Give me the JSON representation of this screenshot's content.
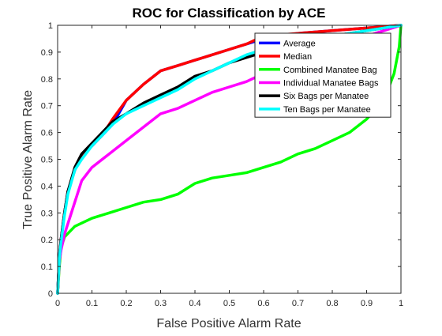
{
  "chart_data": {
    "type": "line",
    "title": "ROC for Classification by ACE",
    "xlabel": "False Positive Alarm Rate",
    "ylabel": "True Positive Alarm Rate",
    "xlim": [
      0,
      1
    ],
    "ylim": [
      0,
      1
    ],
    "xticks": [
      "0",
      "0.1",
      "0.2",
      "0.3",
      "0.4",
      "0.5",
      "0.6",
      "0.7",
      "0.8",
      "0.9",
      "1"
    ],
    "yticks": [
      "0",
      "0.1",
      "0.2",
      "0.3",
      "0.4",
      "0.5",
      "0.6",
      "0.7",
      "0.8",
      "0.9",
      "1"
    ],
    "grid": false,
    "legend_position": "top-right",
    "series": [
      {
        "name": "Average",
        "color": "#0000ff",
        "points": [
          [
            0,
            0
          ],
          [
            0.005,
            0.14
          ],
          [
            0.01,
            0.2
          ],
          [
            0.02,
            0.3
          ],
          [
            0.03,
            0.38
          ],
          [
            0.05,
            0.46
          ],
          [
            0.07,
            0.51
          ],
          [
            0.1,
            0.55
          ],
          [
            0.13,
            0.59
          ],
          [
            0.16,
            0.63
          ],
          [
            0.2,
            0.72
          ],
          [
            0.25,
            0.78
          ],
          [
            0.3,
            0.83
          ],
          [
            0.35,
            0.85
          ],
          [
            0.4,
            0.87
          ],
          [
            0.45,
            0.89
          ],
          [
            0.5,
            0.91
          ],
          [
            0.55,
            0.93
          ],
          [
            0.6,
            0.95
          ],
          [
            0.7,
            0.97
          ],
          [
            0.8,
            0.98
          ],
          [
            0.9,
            0.99
          ],
          [
            1,
            1
          ]
        ]
      },
      {
        "name": "Median",
        "color": "#ff0000",
        "points": [
          [
            0,
            0
          ],
          [
            0.005,
            0.13
          ],
          [
            0.01,
            0.2
          ],
          [
            0.02,
            0.3
          ],
          [
            0.03,
            0.38
          ],
          [
            0.05,
            0.46
          ],
          [
            0.07,
            0.51
          ],
          [
            0.1,
            0.55
          ],
          [
            0.13,
            0.59
          ],
          [
            0.16,
            0.65
          ],
          [
            0.2,
            0.72
          ],
          [
            0.25,
            0.78
          ],
          [
            0.3,
            0.83
          ],
          [
            0.35,
            0.85
          ],
          [
            0.4,
            0.87
          ],
          [
            0.45,
            0.89
          ],
          [
            0.5,
            0.91
          ],
          [
            0.55,
            0.93
          ],
          [
            0.6,
            0.96
          ],
          [
            0.7,
            0.97
          ],
          [
            0.8,
            0.98
          ],
          [
            0.9,
            0.99
          ],
          [
            1,
            1
          ]
        ]
      },
      {
        "name": "Combined Manatee Bag",
        "color": "#00ff00",
        "points": [
          [
            0,
            0
          ],
          [
            0.005,
            0.1
          ],
          [
            0.01,
            0.17
          ],
          [
            0.02,
            0.21
          ],
          [
            0.05,
            0.25
          ],
          [
            0.1,
            0.28
          ],
          [
            0.15,
            0.3
          ],
          [
            0.2,
            0.32
          ],
          [
            0.25,
            0.34
          ],
          [
            0.3,
            0.35
          ],
          [
            0.35,
            0.37
          ],
          [
            0.4,
            0.41
          ],
          [
            0.45,
            0.43
          ],
          [
            0.5,
            0.44
          ],
          [
            0.55,
            0.45
          ],
          [
            0.6,
            0.47
          ],
          [
            0.65,
            0.49
          ],
          [
            0.7,
            0.52
          ],
          [
            0.75,
            0.54
          ],
          [
            0.8,
            0.57
          ],
          [
            0.85,
            0.6
          ],
          [
            0.9,
            0.65
          ],
          [
            0.95,
            0.72
          ],
          [
            0.98,
            0.82
          ],
          [
            0.995,
            0.92
          ],
          [
            1,
            1
          ]
        ]
      },
      {
        "name": "Individual Manatee Bags",
        "color": "#ff00ff",
        "points": [
          [
            0,
            0
          ],
          [
            0.005,
            0.12
          ],
          [
            0.01,
            0.16
          ],
          [
            0.02,
            0.22
          ],
          [
            0.04,
            0.3
          ],
          [
            0.07,
            0.42
          ],
          [
            0.1,
            0.47
          ],
          [
            0.15,
            0.52
          ],
          [
            0.2,
            0.57
          ],
          [
            0.25,
            0.62
          ],
          [
            0.3,
            0.67
          ],
          [
            0.35,
            0.69
          ],
          [
            0.4,
            0.72
          ],
          [
            0.45,
            0.75
          ],
          [
            0.5,
            0.77
          ],
          [
            0.55,
            0.79
          ],
          [
            0.6,
            0.82
          ],
          [
            0.65,
            0.84
          ],
          [
            0.7,
            0.86
          ],
          [
            0.75,
            0.88
          ],
          [
            0.8,
            0.91
          ],
          [
            0.85,
            0.93
          ],
          [
            0.9,
            0.96
          ],
          [
            0.95,
            0.98
          ],
          [
            1,
            1
          ]
        ]
      },
      {
        "name": "Six Bags per Manatee",
        "color": "#000000",
        "points": [
          [
            0,
            0
          ],
          [
            0.005,
            0.14
          ],
          [
            0.01,
            0.2
          ],
          [
            0.02,
            0.3
          ],
          [
            0.03,
            0.38
          ],
          [
            0.05,
            0.47
          ],
          [
            0.07,
            0.52
          ],
          [
            0.1,
            0.56
          ],
          [
            0.13,
            0.6
          ],
          [
            0.16,
            0.64
          ],
          [
            0.2,
            0.67
          ],
          [
            0.25,
            0.71
          ],
          [
            0.3,
            0.74
          ],
          [
            0.35,
            0.77
          ],
          [
            0.4,
            0.81
          ],
          [
            0.45,
            0.83
          ],
          [
            0.5,
            0.86
          ],
          [
            0.55,
            0.88
          ],
          [
            0.6,
            0.9
          ],
          [
            0.7,
            0.93
          ],
          [
            0.8,
            0.96
          ],
          [
            0.9,
            0.98
          ],
          [
            1,
            1
          ]
        ]
      },
      {
        "name": "Ten Bags per Manatee",
        "color": "#00ffff",
        "points": [
          [
            0,
            0
          ],
          [
            0.005,
            0.13
          ],
          [
            0.01,
            0.19
          ],
          [
            0.02,
            0.29
          ],
          [
            0.03,
            0.37
          ],
          [
            0.05,
            0.46
          ],
          [
            0.07,
            0.5
          ],
          [
            0.1,
            0.55
          ],
          [
            0.13,
            0.59
          ],
          [
            0.16,
            0.63
          ],
          [
            0.2,
            0.67
          ],
          [
            0.25,
            0.7
          ],
          [
            0.3,
            0.73
          ],
          [
            0.35,
            0.76
          ],
          [
            0.4,
            0.8
          ],
          [
            0.45,
            0.83
          ],
          [
            0.5,
            0.86
          ],
          [
            0.55,
            0.89
          ],
          [
            0.6,
            0.91
          ],
          [
            0.7,
            0.94
          ],
          [
            0.8,
            0.96
          ],
          [
            0.9,
            0.98
          ],
          [
            1,
            1
          ]
        ]
      }
    ]
  }
}
